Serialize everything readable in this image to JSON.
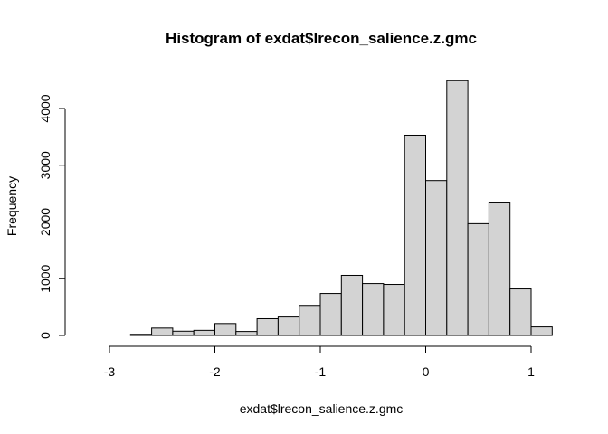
{
  "chart_data": {
    "type": "bar",
    "title": "Histogram of exdat$lrecon_salience.z.gmc",
    "xlabel": "exdat$lrecon_salience.z.gmc",
    "ylabel": "Frequency",
    "bin_width": 0.2,
    "bins": [
      {
        "start": -3.0,
        "end": -2.8,
        "count": 0
      },
      {
        "start": -2.8,
        "end": -2.6,
        "count": 20
      },
      {
        "start": -2.6,
        "end": -2.4,
        "count": 130
      },
      {
        "start": -2.4,
        "end": -2.2,
        "count": 75
      },
      {
        "start": -2.2,
        "end": -2.0,
        "count": 90
      },
      {
        "start": -2.0,
        "end": -1.8,
        "count": 210
      },
      {
        "start": -1.8,
        "end": -1.6,
        "count": 70
      },
      {
        "start": -1.6,
        "end": -1.4,
        "count": 295
      },
      {
        "start": -1.4,
        "end": -1.2,
        "count": 325
      },
      {
        "start": -1.2,
        "end": -1.0,
        "count": 530
      },
      {
        "start": -1.0,
        "end": -0.8,
        "count": 740
      },
      {
        "start": -0.8,
        "end": -0.6,
        "count": 1060
      },
      {
        "start": -0.6,
        "end": -0.4,
        "count": 915
      },
      {
        "start": -0.4,
        "end": -0.2,
        "count": 900
      },
      {
        "start": -0.2,
        "end": 0.0,
        "count": 3530
      },
      {
        "start": 0.0,
        "end": 0.2,
        "count": 2730
      },
      {
        "start": 0.2,
        "end": 0.4,
        "count": 4490
      },
      {
        "start": 0.4,
        "end": 0.6,
        "count": 1970
      },
      {
        "start": 0.6,
        "end": 0.8,
        "count": 2350
      },
      {
        "start": 0.8,
        "end": 1.0,
        "count": 820
      },
      {
        "start": 1.0,
        "end": 1.2,
        "count": 150
      }
    ],
    "xlim": [
      -3.2,
      1.2
    ],
    "ylim": [
      0,
      4500
    ],
    "x_ticks": [
      -3,
      -2,
      -1,
      0,
      1
    ],
    "y_ticks": [
      0,
      1000,
      2000,
      3000,
      4000
    ],
    "x_tick_labels": [
      "-3",
      "-2",
      "-1",
      "0",
      "1"
    ],
    "y_tick_labels": [
      "0",
      "1000",
      "2000",
      "3000",
      "4000"
    ],
    "bar_fill": "#d3d3d3",
    "bar_stroke": "#000000",
    "grid": false,
    "legend": "none"
  }
}
